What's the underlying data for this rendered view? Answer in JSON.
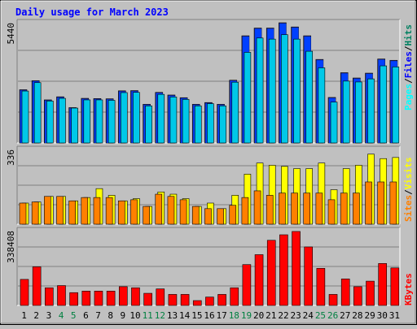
{
  "chart_data": [
    {
      "type": "bar",
      "title": "Daily usage for March 2023",
      "panel": "top",
      "ymax_label": "5440",
      "categories": [
        "1",
        "2",
        "3",
        "4",
        "5",
        "6",
        "7",
        "8",
        "9",
        "10",
        "11",
        "12",
        "13",
        "14",
        "15",
        "16",
        "17",
        "18",
        "19",
        "20",
        "21",
        "22",
        "23",
        "24",
        "25",
        "26",
        "27",
        "28",
        "29",
        "30",
        "31"
      ],
      "weekend_days": [
        "4",
        "5",
        "11",
        "12",
        "18",
        "19",
        "25",
        "26"
      ],
      "ylim": [
        0,
        5440
      ],
      "legend": [
        "Pages",
        "/",
        "Files",
        "/",
        "Hits"
      ],
      "series": [
        {
          "name": "Pages",
          "values": [
            0,
            0,
            0,
            0,
            0,
            0,
            0,
            0,
            0,
            0,
            0,
            0,
            0,
            0,
            0,
            0,
            0,
            0,
            0,
            0,
            0,
            0,
            0,
            0,
            0,
            0,
            0,
            0,
            0,
            0,
            0
          ]
        },
        {
          "name": "Files",
          "values": [
            2410,
            2820,
            1950,
            2090,
            1600,
            2020,
            2010,
            2000,
            2360,
            2370,
            1750,
            2290,
            2170,
            2050,
            1750,
            1830,
            1750,
            2840,
            4850,
            5200,
            5200,
            5440,
            5250,
            4850,
            3780,
            2060,
            3180,
            2940,
            3160,
            3800,
            3740
          ]
        },
        {
          "name": "Hits",
          "values": [
            2350,
            2730,
            1900,
            2020,
            1580,
            1950,
            1950,
            1930,
            2280,
            2290,
            1680,
            2200,
            2080,
            1970,
            1680,
            1780,
            1680,
            2750,
            4100,
            4750,
            4700,
            4900,
            4700,
            4150,
            3400,
            1850,
            2800,
            2760,
            2900,
            3490,
            3440
          ]
        }
      ]
    },
    {
      "type": "bar",
      "panel": "middle",
      "ymax_label": "336",
      "categories": [
        "1",
        "2",
        "3",
        "4",
        "5",
        "6",
        "7",
        "8",
        "9",
        "10",
        "11",
        "12",
        "13",
        "14",
        "15",
        "16",
        "17",
        "18",
        "19",
        "20",
        "21",
        "22",
        "23",
        "24",
        "25",
        "26",
        "27",
        "28",
        "29",
        "30",
        "31"
      ],
      "ylim": [
        0,
        336
      ],
      "legend": [
        "Sites",
        "/",
        "Visits"
      ],
      "series": [
        {
          "name": "Visits",
          "values": [
            95,
            100,
            125,
            125,
            105,
            120,
            160,
            130,
            105,
            115,
            80,
            145,
            135,
            115,
            80,
            95,
            70,
            130,
            225,
            275,
            265,
            260,
            250,
            250,
            275,
            155,
            250,
            265,
            315,
            295,
            300
          ]
        },
        {
          "name": "Sites",
          "values": [
            95,
            100,
            125,
            125,
            105,
            120,
            120,
            120,
            105,
            110,
            80,
            135,
            125,
            110,
            80,
            70,
            70,
            85,
            120,
            150,
            130,
            140,
            140,
            140,
            140,
            110,
            140,
            140,
            190,
            190,
            190
          ]
        }
      ]
    },
    {
      "type": "bar",
      "panel": "bottom",
      "ymax_label": "338408",
      "categories": [
        "1",
        "2",
        "3",
        "4",
        "5",
        "6",
        "7",
        "8",
        "9",
        "10",
        "11",
        "12",
        "13",
        "14",
        "15",
        "16",
        "17",
        "18",
        "19",
        "20",
        "21",
        "22",
        "23",
        "24",
        "25",
        "26",
        "27",
        "28",
        "29",
        "30",
        "31"
      ],
      "ylim": [
        0,
        338408
      ],
      "legend": [
        "KBytes"
      ],
      "series": [
        {
          "name": "KBytes",
          "values": [
            118000,
            175000,
            80000,
            90000,
            58000,
            65000,
            65000,
            65000,
            85000,
            80000,
            55000,
            75000,
            50000,
            50000,
            22000,
            38000,
            50000,
            80000,
            185000,
            230000,
            295000,
            320000,
            335000,
            265000,
            168000,
            50000,
            120000,
            85000,
            110000,
            190000,
            170000
          ]
        }
      ]
    }
  ],
  "colors": {
    "background": "#c0c0c0",
    "plot_bg": "#c0c0c0",
    "pages": "#00ffff",
    "pages_back": "#0000c0",
    "files": "#0040ff",
    "hits": "#00c8e8",
    "sites": "#ff8000",
    "visits": "#ffff00",
    "kbytes": "#ff0000",
    "title": "#0000ff",
    "weekend": "#008040",
    "weekday": "#000000",
    "label_pages": "#00ffff",
    "label_files": "#0000ff",
    "label_hits": "#008060",
    "label_sites": "#ff8000",
    "label_visits": "#ffff00",
    "label_kbytes": "#ff0000"
  }
}
